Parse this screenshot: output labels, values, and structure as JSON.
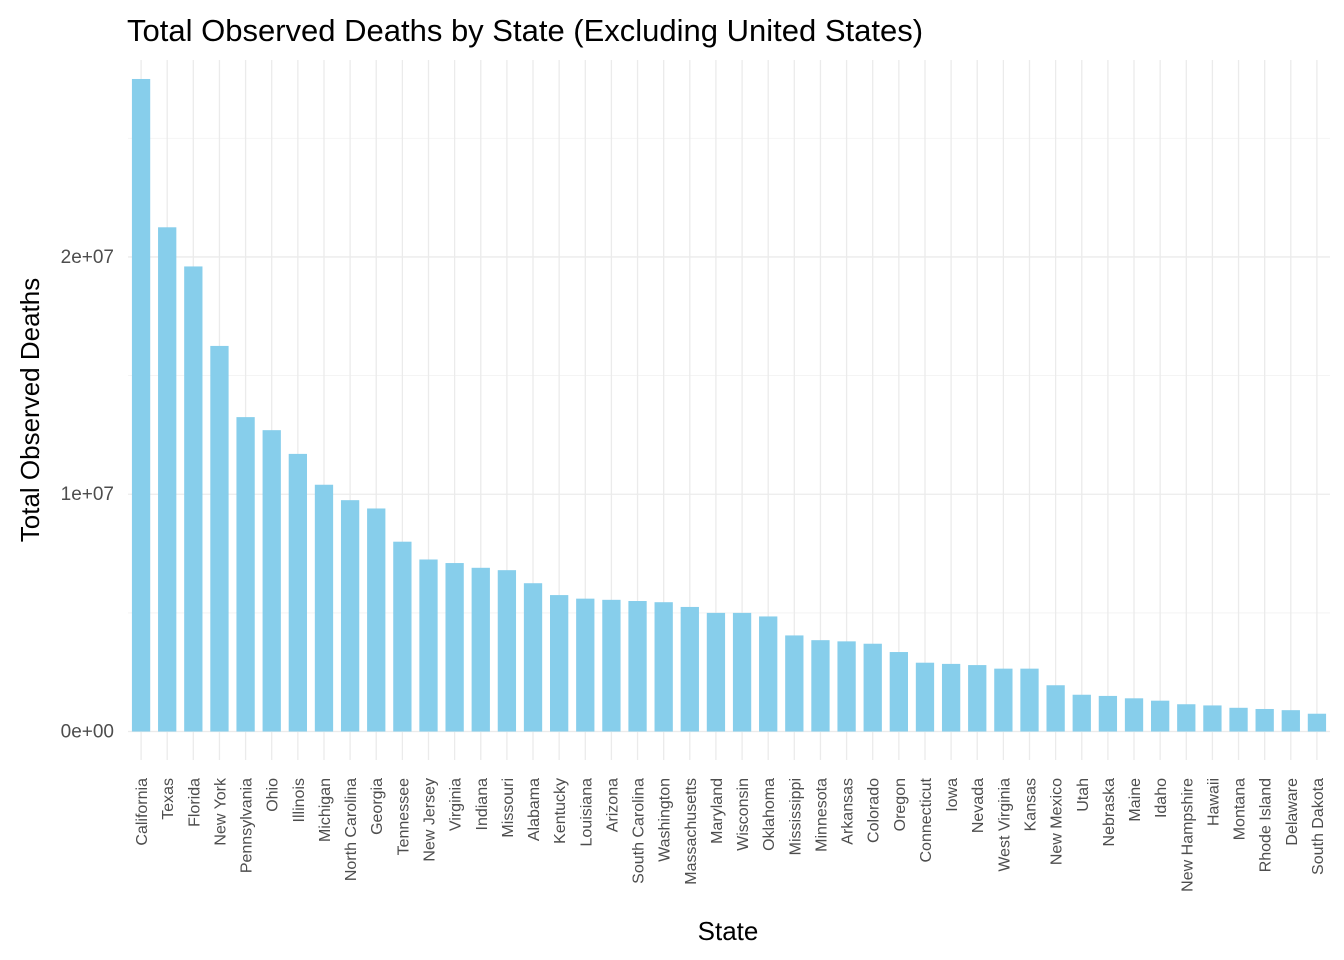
{
  "chart_data": {
    "type": "bar",
    "title": "Total Observed Deaths by State (Excluding United States)",
    "xlabel": "State",
    "ylabel": "Total Observed Deaths",
    "ylim": [
      -1200000,
      28300000
    ],
    "yticks": [
      {
        "value": 0,
        "label": "0e+00"
      },
      {
        "value": 10000000,
        "label": "1e+07"
      },
      {
        "value": 20000000,
        "label": "2e+07"
      }
    ],
    "y_minor_ticks": [
      5000000,
      15000000,
      25000000
    ],
    "grid": true,
    "bar_color": "#87CEEB",
    "categories": [
      "California",
      "Texas",
      "Florida",
      "New York",
      "Pennsylvania",
      "Ohio",
      "Illinois",
      "Michigan",
      "North Carolina",
      "Georgia",
      "Tennessee",
      "New Jersey",
      "Virginia",
      "Indiana",
      "Missouri",
      "Alabama",
      "Kentucky",
      "Louisiana",
      "Arizona",
      "South Carolina",
      "Washington",
      "Massachusetts",
      "Maryland",
      "Wisconsin",
      "Oklahoma",
      "Mississippi",
      "Minnesota",
      "Arkansas",
      "Colorado",
      "Oregon",
      "Connecticut",
      "Iowa",
      "Nevada",
      "West Virginia",
      "Kansas",
      "New Mexico",
      "Utah",
      "Nebraska",
      "Maine",
      "Idaho",
      "New Hampshire",
      "Hawaii",
      "Montana",
      "Rhode Island",
      "Delaware",
      "South Dakota"
    ],
    "values": [
      27500000,
      21250000,
      19600000,
      16250000,
      13250000,
      12700000,
      11700000,
      10400000,
      9750000,
      9400000,
      8000000,
      7250000,
      7100000,
      6900000,
      6800000,
      6250000,
      5750000,
      5600000,
      5550000,
      5500000,
      5450000,
      5250000,
      5000000,
      5000000,
      4850000,
      4050000,
      3850000,
      3800000,
      3700000,
      3350000,
      2900000,
      2850000,
      2800000,
      2650000,
      2650000,
      1950000,
      1550000,
      1500000,
      1400000,
      1300000,
      1150000,
      1100000,
      1000000,
      950000,
      900000,
      750000
    ]
  }
}
